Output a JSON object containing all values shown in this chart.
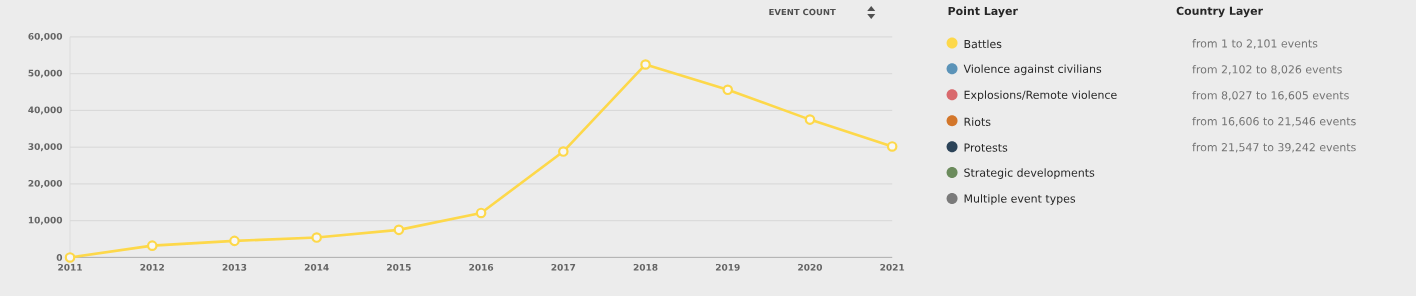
{
  "chart_data": {
    "type": "line",
    "x": [
      2011,
      2012,
      2013,
      2014,
      2015,
      2016,
      2017,
      2018,
      2019,
      2020,
      2021
    ],
    "series": [
      {
        "name": "Battles",
        "color": "#fdd84a",
        "values": [
          0,
          3200,
          4500,
          5400,
          7500,
          12100,
          28800,
          52500,
          45600,
          37500,
          30200
        ]
      },
      {
        "name": "Violence against civilians",
        "color": "#5b93b8",
        "values": [
          null,
          null,
          null,
          null,
          null,
          null,
          null,
          null,
          null,
          null,
          null
        ]
      },
      {
        "name": "Explosions/Remote violence",
        "color": "#d9696d",
        "values": [
          null,
          null,
          null,
          null,
          null,
          null,
          null,
          null,
          null,
          null,
          null
        ]
      },
      {
        "name": "Riots",
        "color": "#d3762a",
        "values": [
          null,
          null,
          null,
          null,
          null,
          null,
          null,
          null,
          null,
          null,
          null
        ]
      },
      {
        "name": "Protests",
        "color": "#2b4358",
        "values": [
          null,
          null,
          null,
          null,
          null,
          null,
          null,
          null,
          null,
          null,
          null
        ]
      },
      {
        "name": "Strategic developments",
        "color": "#6b8b5c",
        "values": [
          null,
          null,
          null,
          null,
          null,
          null,
          null,
          null,
          null,
          null,
          null
        ]
      },
      {
        "name": "Multiple event types",
        "color": "#7a7a7a",
        "values": [
          null,
          null,
          null,
          null,
          null,
          null,
          null,
          null,
          null,
          null,
          null
        ]
      }
    ],
    "legend_title": "Point Layer",
    "legend": "right",
    "annotations": [
      "EVENT COUNT",
      "Country Layer",
      "from 1 to 2,101 events",
      "from 2,102 to 8,026 events",
      "from 8,027 to 16,605 events",
      "from 16,606 to 21,546 events",
      "from 21,547 to 39,242 events"
    ],
    "xlim": [
      2011,
      2021
    ],
    "xticks": [
      2011,
      2012,
      2013,
      2014,
      2015,
      2016,
      2017,
      2018,
      2019,
      2020,
      2021
    ],
    "ylim": [
      0,
      60000
    ],
    "yticks": [
      0,
      {
        "value": 10000,
        "label": "10,000"
      },
      {
        "value": 20000,
        "label": "20,000"
      },
      {
        "value": 30000,
        "label": "30,000"
      },
      {
        "value": 40000,
        "label": "40,000"
      },
      {
        "value": 50000,
        "label": "50,000"
      },
      {
        "value": 60000,
        "label": "60,000"
      }
    ],
    "grid": "y",
    "marker": "circle",
    "line_style": "solid"
  }
}
